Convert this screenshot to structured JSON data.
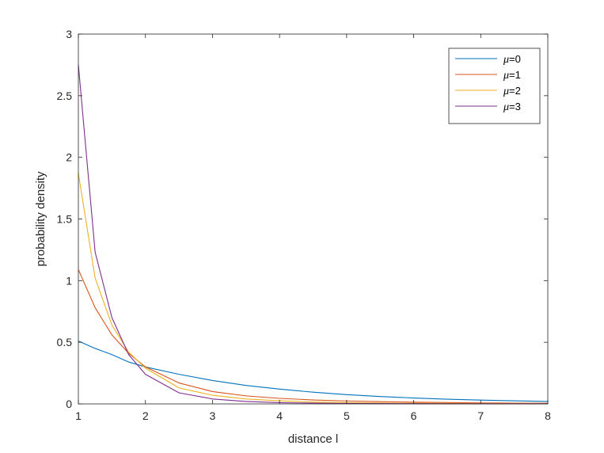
{
  "chart_data": {
    "type": "line",
    "title": "",
    "xlabel": "distance l",
    "ylabel": "probability density",
    "xlim": [
      1,
      8
    ],
    "ylim": [
      0,
      3
    ],
    "xticks": [
      "1",
      "2",
      "3",
      "4",
      "5",
      "6",
      "7",
      "8"
    ],
    "yticks": [
      "0",
      "0.5",
      "1",
      "1.5",
      "2",
      "2.5",
      "3"
    ],
    "grid": false,
    "legend_position": "top-right",
    "x": [
      1,
      1.25,
      1.5,
      1.75,
      2,
      2.5,
      3,
      3.5,
      4,
      4.5,
      5,
      5.5,
      6,
      6.5,
      7,
      7.5,
      8
    ],
    "series": [
      {
        "name": "μ=0",
        "legend_symbol": "μ",
        "legend_value": "=0",
        "color": "#0072BD",
        "values": [
          0.51,
          0.45,
          0.4,
          0.34,
          0.3,
          0.24,
          0.19,
          0.15,
          0.12,
          0.095,
          0.075,
          0.06,
          0.048,
          0.038,
          0.031,
          0.025,
          0.02
        ]
      },
      {
        "name": "μ=1",
        "legend_symbol": "μ",
        "legend_value": "=1",
        "color": "#D95319",
        "values": [
          1.09,
          0.78,
          0.56,
          0.41,
          0.3,
          0.17,
          0.1,
          0.065,
          0.045,
          0.032,
          0.024,
          0.018,
          0.014,
          0.011,
          0.008,
          0.006,
          0.005
        ]
      },
      {
        "name": "μ=2",
        "legend_symbol": "μ",
        "legend_value": "=2",
        "color": "#EDB120",
        "values": [
          1.87,
          1.02,
          0.64,
          0.42,
          0.29,
          0.13,
          0.07,
          0.04,
          0.025,
          0.015,
          0.01,
          0.007,
          0.005,
          0.004,
          0.003,
          0.002,
          0.002
        ]
      },
      {
        "name": "μ=3",
        "legend_symbol": "μ",
        "legend_value": "=3",
        "color": "#7E2F8E",
        "values": [
          2.75,
          1.23,
          0.7,
          0.4,
          0.24,
          0.09,
          0.04,
          0.02,
          0.01,
          0.006,
          0.004,
          0.003,
          0.002,
          0.001,
          0.001,
          0.001,
          0.001
        ]
      }
    ]
  }
}
